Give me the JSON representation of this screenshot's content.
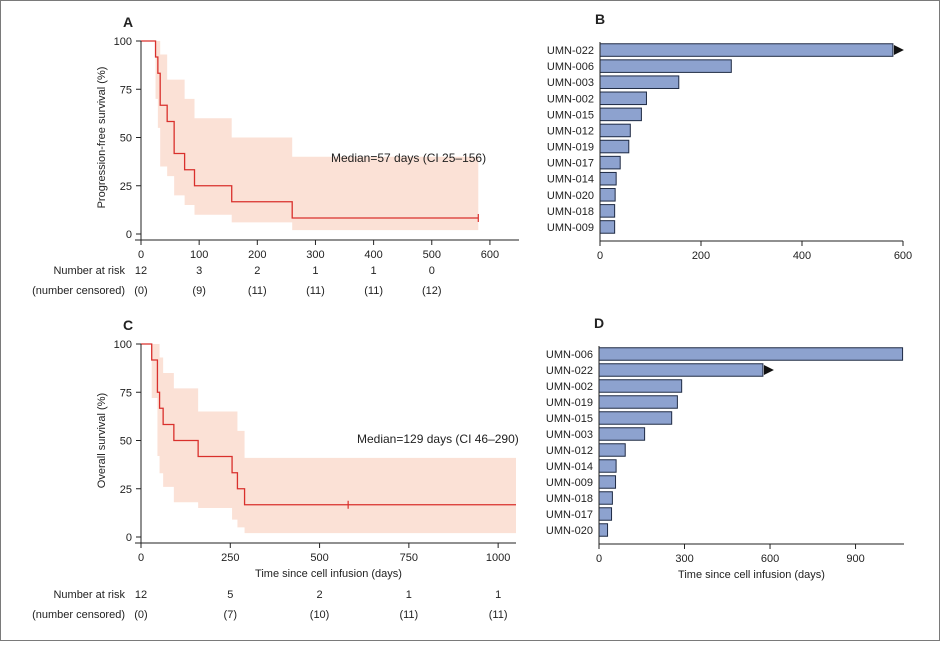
{
  "colors": {
    "km_line": "#d9302c",
    "ci_band": "#fbe1d6",
    "bar_fill": "#8da2cf",
    "bar_stroke": "#1e2a44",
    "axis": "#222222"
  },
  "chart_data": [
    {
      "id": "A",
      "type": "line",
      "panel_label": "A",
      "ylabel": "Progression-free survival (%)",
      "xlabel": "",
      "xlim": [
        0,
        650
      ],
      "ylim": [
        0,
        100
      ],
      "xticks": [
        0,
        100,
        200,
        300,
        400,
        500,
        600
      ],
      "yticks": [
        0,
        25,
        50,
        75,
        100
      ],
      "annotation": "Median=57 days (CI 25–156)",
      "series": [
        {
          "name": "Progression-free survival",
          "x": [
            0,
            25,
            25,
            29,
            29,
            33,
            33,
            45,
            45,
            57,
            57,
            75,
            75,
            92,
            92,
            156,
            156,
            260,
            260,
            580
          ],
          "y": [
            100,
            100,
            91.7,
            91.7,
            83.3,
            83.3,
            66.7,
            66.7,
            58.3,
            58.3,
            41.7,
            41.7,
            33.3,
            33.3,
            25,
            25,
            16.7,
            16.7,
            8.3,
            8.3
          ]
        }
      ],
      "ci_upper": {
        "x": [
          25,
          29,
          33,
          45,
          57,
          75,
          92,
          156,
          260,
          580
        ],
        "y": [
          100,
          100,
          93,
          80,
          80,
          70,
          60,
          50,
          40,
          31
        ]
      },
      "ci_lower": {
        "x": [
          25,
          29,
          33,
          45,
          57,
          75,
          92,
          156,
          260,
          580
        ],
        "y": [
          70,
          55,
          35,
          30,
          20,
          15,
          10,
          6,
          2,
          2
        ]
      },
      "censor_marks": [
        {
          "x": 580,
          "y": 8.3
        }
      ],
      "risk_table": {
        "label1": "Number at risk",
        "label2": "(number censored)",
        "times": [
          0,
          100,
          200,
          300,
          400,
          500
        ],
        "at_risk": [
          "12",
          "3",
          "2",
          "1",
          "1",
          "0"
        ],
        "censored": [
          "(0)",
          "(9)",
          "(11)",
          "(11)",
          "(11)",
          "(12)"
        ]
      }
    },
    {
      "id": "B",
      "type": "bar",
      "panel_label": "B",
      "xlim": [
        0,
        600
      ],
      "xticks": [
        0,
        200,
        400,
        600
      ],
      "xlabel": "",
      "categories": [
        "UMN-022",
        "UMN-006",
        "UMN-003",
        "UMN-002",
        "UMN-015",
        "UMN-012",
        "UMN-019",
        "UMN-017",
        "UMN-014",
        "UMN-020",
        "UMN-018",
        "UMN-009"
      ],
      "values": [
        580,
        260,
        156,
        92,
        82,
        60,
        57,
        40,
        32,
        30,
        29,
        29
      ],
      "arrow_categories": [
        "UMN-022"
      ]
    },
    {
      "id": "C",
      "type": "line",
      "panel_label": "C",
      "ylabel": "Overall survival (%)",
      "xlabel": "Time since cell infusion (days)",
      "xlim": [
        0,
        1050
      ],
      "ylim": [
        0,
        100
      ],
      "xticks": [
        0,
        250,
        500,
        750,
        1000
      ],
      "yticks": [
        0,
        25,
        50,
        75,
        100
      ],
      "annotation": "Median=129 days (CI 46–290)",
      "series": [
        {
          "name": "Overall survival",
          "x": [
            0,
            30,
            30,
            46,
            46,
            52,
            52,
            62,
            62,
            92,
            92,
            160,
            160,
            255,
            255,
            270,
            270,
            290,
            290,
            1050
          ],
          "y": [
            100,
            100,
            91.7,
            91.7,
            75,
            75,
            66.7,
            66.7,
            58.3,
            58.3,
            50,
            50,
            41.7,
            41.7,
            33.3,
            33.3,
            25,
            25,
            16.7,
            16.7
          ]
        }
      ],
      "ci_upper": {
        "x": [
          30,
          46,
          52,
          62,
          92,
          160,
          255,
          270,
          290,
          1050
        ],
        "y": [
          100,
          100,
          93,
          85,
          77,
          65,
          65,
          55,
          41,
          41
        ]
      },
      "ci_lower": {
        "x": [
          30,
          46,
          52,
          62,
          92,
          160,
          255,
          270,
          290,
          1050
        ],
        "y": [
          72,
          42,
          33,
          26,
          18,
          15,
          9,
          5,
          2,
          2
        ]
      },
      "censor_marks": [
        {
          "x": 580,
          "y": 16.7
        }
      ],
      "risk_table": {
        "label1": "Number at risk",
        "label2": "(number censored)",
        "times": [
          0,
          250,
          500,
          750,
          1000
        ],
        "at_risk": [
          "12",
          "5",
          "2",
          "1",
          "1"
        ],
        "censored": [
          "(0)",
          "(7)",
          "(10)",
          "(11)",
          "(11)"
        ]
      }
    },
    {
      "id": "D",
      "type": "bar",
      "panel_label": "D",
      "xlim": [
        0,
        1070
      ],
      "xticks": [
        0,
        300,
        600,
        900
      ],
      "xlabel": "Time since cell infusion (days)",
      "categories": [
        "UMN-006",
        "UMN-022",
        "UMN-002",
        "UMN-019",
        "UMN-015",
        "UMN-003",
        "UMN-012",
        "UMN-014",
        "UMN-009",
        "UMN-018",
        "UMN-017",
        "UMN-020"
      ],
      "values": [
        1065,
        575,
        290,
        275,
        255,
        160,
        92,
        60,
        58,
        47,
        44,
        30
      ],
      "arrow_categories": [
        "UMN-022"
      ]
    }
  ]
}
